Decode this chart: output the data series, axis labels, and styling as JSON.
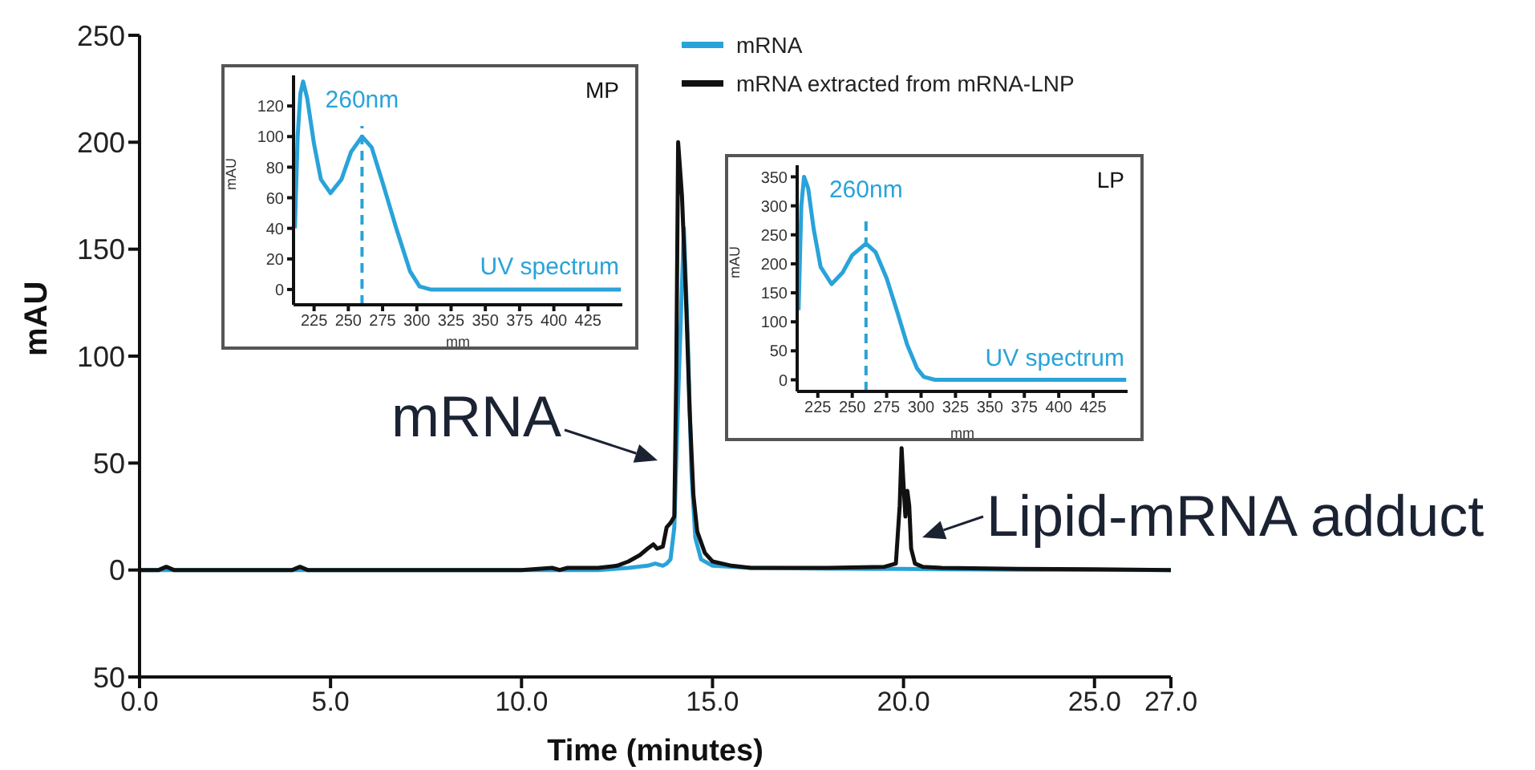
{
  "chart_data": [
    {
      "type": "line",
      "xlabel": "Time (minutes)",
      "ylabel": "mAU",
      "xlim": [
        0,
        27
      ],
      "xticks": [
        {
          "value": 0,
          "label": "0.0"
        },
        {
          "value": 5,
          "label": "5.0"
        },
        {
          "value": 10,
          "label": "10.0"
        },
        {
          "value": 15,
          "label": "15.0"
        },
        {
          "value": 20,
          "label": "20.0"
        },
        {
          "value": 25,
          "label": "25.0"
        },
        {
          "value": 27,
          "label": "27.0"
        }
      ],
      "ylim": [
        -50,
        250
      ],
      "yticks": [
        {
          "value": -50,
          "label": "50"
        },
        0,
        50,
        100,
        150,
        200,
        250
      ],
      "legend": "top",
      "annotations": [
        "mRNA",
        "Lipid-mRNA adduct"
      ],
      "series": [
        {
          "name": "mRNA",
          "color": "#29a3d9",
          "x": [
            0,
            4,
            8,
            12,
            12.8,
            13.3,
            13.5,
            13.7,
            13.8,
            13.9,
            14.0,
            14.1,
            14.25,
            14.35,
            14.45,
            14.55,
            14.7,
            15,
            16,
            19,
            20,
            21,
            27
          ],
          "values": [
            0,
            0,
            0,
            0,
            1,
            2,
            3,
            2,
            3,
            5,
            20,
            80,
            160,
            110,
            45,
            15,
            5,
            2,
            1,
            0.5,
            0.5,
            0.3,
            0
          ]
        },
        {
          "name": "mRNA extracted from mRNA-LNP",
          "color": "#111111",
          "x": [
            0,
            0.5,
            0.7,
            0.9,
            2,
            4,
            4.2,
            4.4,
            6,
            8,
            10,
            10.8,
            11,
            11.2,
            12,
            12.5,
            12.8,
            13.1,
            13.3,
            13.45,
            13.55,
            13.7,
            13.8,
            13.9,
            14.0,
            14.05,
            14.1,
            14.2,
            14.3,
            14.4,
            14.5,
            14.6,
            14.8,
            15,
            15.5,
            16,
            18,
            19.5,
            19.8,
            19.9,
            19.95,
            20.0,
            20.05,
            20.1,
            20.15,
            20.2,
            20.3,
            20.5,
            21,
            23,
            25,
            27
          ],
          "values": [
            0,
            0,
            1.5,
            0,
            0,
            0,
            1.5,
            0,
            0,
            0,
            0,
            1,
            0,
            1,
            1,
            2,
            4,
            7,
            10,
            12,
            10,
            11,
            20,
            22,
            25,
            90,
            200,
            175,
            130,
            75,
            35,
            18,
            8,
            4,
            2,
            1,
            1,
            1.5,
            3,
            30,
            57,
            40,
            25,
            37,
            30,
            10,
            3,
            1.5,
            1,
            0.5,
            0.3,
            0
          ]
        }
      ]
    },
    {
      "type": "line",
      "title": "MP",
      "xlabel": "mm",
      "ylabel": "mAU",
      "xlim": [
        210,
        450
      ],
      "xticks": [
        225,
        250,
        275,
        300,
        325,
        350,
        375,
        400,
        425
      ],
      "ylim": [
        -10,
        140
      ],
      "yticks": [
        0,
        20,
        40,
        60,
        80,
        100,
        120
      ],
      "ref_lines": [
        {
          "axis": "x",
          "value": 260,
          "label": "260nm",
          "color": "#29a3d9",
          "line_style": "dashed"
        }
      ],
      "annotations": [
        "UV spectrum"
      ],
      "series": [
        {
          "color": "#29a3d9",
          "x": [
            211,
            213,
            215,
            217,
            220,
            225,
            230,
            237,
            245,
            252,
            260,
            267,
            275,
            285,
            295,
            302,
            310,
            350,
            400,
            449
          ],
          "values": [
            40,
            100,
            128,
            136,
            125,
            95,
            72,
            63,
            72,
            90,
            100,
            93,
            70,
            40,
            12,
            2,
            0,
            0,
            0,
            0
          ]
        }
      ]
    },
    {
      "type": "line",
      "title": "LP",
      "xlabel": "mm",
      "ylabel": "mAU",
      "xlim": [
        210,
        450
      ],
      "xticks": [
        225,
        250,
        275,
        300,
        325,
        350,
        375,
        400,
        425
      ],
      "ylim": [
        -20,
        370
      ],
      "yticks": [
        0,
        50,
        100,
        150,
        200,
        250,
        300,
        350
      ],
      "ref_lines": [
        {
          "axis": "x",
          "value": 260,
          "label": "260nm",
          "color": "#29a3d9",
          "line_style": "dashed"
        }
      ],
      "annotations": [
        "UV spectrum"
      ],
      "series": [
        {
          "color": "#29a3d9",
          "x": [
            211,
            213,
            215,
            218,
            222,
            227,
            235,
            243,
            250,
            260,
            267,
            275,
            283,
            290,
            297,
            302,
            310,
            350,
            400,
            449
          ],
          "values": [
            120,
            300,
            350,
            330,
            260,
            195,
            165,
            185,
            215,
            235,
            220,
            175,
            115,
            60,
            20,
            5,
            0,
            0,
            0,
            0
          ]
        }
      ]
    }
  ]
}
